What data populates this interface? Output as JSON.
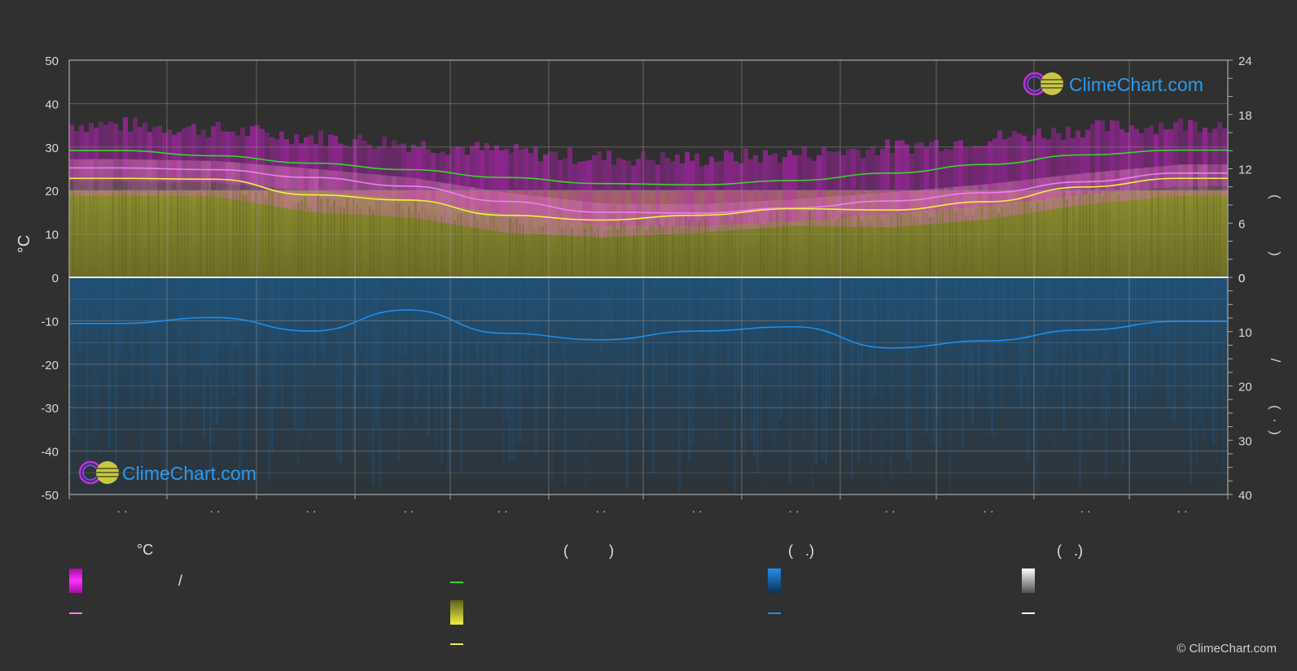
{
  "chart_data": {
    "type": "area",
    "x_ticks": [
      "· ·",
      "· ·",
      "· ·",
      "· ·",
      "· ·",
      "· ·",
      "· ·",
      "· ·",
      "· ·",
      "· ·",
      "· ·",
      "· ·"
    ],
    "left_axis": {
      "label": "°C",
      "min": -50,
      "max": 50,
      "ticks": [
        "50",
        "40",
        "30",
        "20",
        "10",
        "0",
        "-10",
        "-20",
        "-30",
        "-40",
        "-50"
      ]
    },
    "right_axis_top": {
      "min": 0,
      "max": 24,
      "ticks": [
        "24",
        "18",
        "12",
        "6",
        "0"
      ],
      "label_glyphs": [
        "(",
        ")"
      ]
    },
    "right_axis_bottom": {
      "min": 0,
      "max": 40,
      "ticks": [
        "0",
        "10",
        "20",
        "30",
        "40"
      ],
      "label_glyphs": [
        "/",
        "(",
        "·",
        ")"
      ]
    },
    "x_months": [
      0,
      1,
      2,
      3,
      4,
      5,
      6,
      7,
      8,
      9,
      10,
      11
    ],
    "series": [
      {
        "values": [
          29.2,
          28,
          26.3,
          24.8,
          23,
          21.6,
          21.3,
          22.3,
          24,
          26,
          28.2,
          29.3
        ]
      },
      {
        "values": [
          25.2,
          24.8,
          23,
          21,
          17.5,
          15,
          14.8,
          16,
          17.6,
          19.5,
          22,
          24
        ]
      },
      {
        "values": [
          22.8,
          22.6,
          19,
          17.8,
          14.3,
          13.2,
          14.3,
          15.8,
          15.5,
          17.4,
          20.8,
          22.8
        ]
      },
      {
        "values": [
          8.5,
          7.4,
          9.9,
          6.0,
          10.3,
          11.5,
          9.9,
          9.1,
          13.0,
          11.7,
          9.7,
          8.1
        ]
      }
    ],
    "legend": {
      "headers": [
        "°C",
        "(          )",
        "(   .)",
        "(   .)"
      ],
      "items": [
        "/",
        "",
        "",
        "",
        "",
        "",
        "",
        ""
      ]
    },
    "colors": {
      "background": "#303030",
      "sunshine_line": "#39d42b",
      "max_temp_line": "#f07ef0",
      "avg_temp_line": "#f0f040",
      "precip_line": "#1e8ee8",
      "magenta_band": "#d020d0",
      "olive_band": "#8a8a2a",
      "blue_band": "#1c4a6e",
      "white_swatch": "#ffffff"
    }
  },
  "brand": {
    "logo_text": "ClimeChart.com",
    "copyright": "© ClimeChart.com"
  }
}
